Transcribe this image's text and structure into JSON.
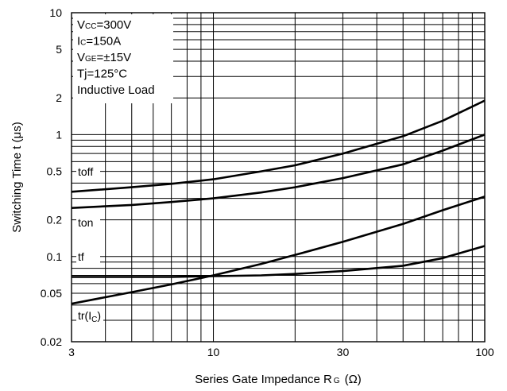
{
  "chart_data": {
    "type": "line",
    "xlabel": "Series Gate Impedance R",
    "xlabel_subscript": "G",
    "xlabel_unit": "(Ω)",
    "ylabel": "Switching Time t (μs)",
    "xscale": "log",
    "yscale": "log",
    "xlim": [
      3,
      100
    ],
    "ylim": [
      0.02,
      10
    ],
    "grid": true,
    "x_ticks": [
      {
        "value": 3,
        "label": "3"
      },
      {
        "value": 10,
        "label": "10"
      },
      {
        "value": 30,
        "label": "30"
      },
      {
        "value": 100,
        "label": "100"
      }
    ],
    "y_ticks": [
      {
        "value": 0.02,
        "label": "0.02"
      },
      {
        "value": 0.05,
        "label": "0.05"
      },
      {
        "value": 0.1,
        "label": "0.1"
      },
      {
        "value": 0.2,
        "label": "0.2"
      },
      {
        "value": 0.5,
        "label": "0.5"
      },
      {
        "value": 1,
        "label": "1"
      },
      {
        "value": 2,
        "label": "2"
      },
      {
        "value": 5,
        "label": "5"
      },
      {
        "value": 10,
        "label": "10"
      }
    ],
    "conditions": [
      {
        "main": "V",
        "sub": "CC",
        "rest": "=300V"
      },
      {
        "main": "I",
        "sub": "C",
        "rest": "=150A"
      },
      {
        "main": "V",
        "sub": "GE",
        "rest": "=±15V"
      },
      {
        "main": "Tj=125°C",
        "sub": "",
        "rest": ""
      },
      {
        "main": "Inductive Load",
        "sub": "",
        "rest": ""
      }
    ],
    "series": [
      {
        "name": "toff",
        "label_main": "toff",
        "label_sub": "",
        "label_tail": "",
        "x": [
          3,
          5,
          7,
          10,
          15,
          20,
          30,
          50,
          70,
          100
        ],
        "y": [
          0.34,
          0.37,
          0.395,
          0.43,
          0.5,
          0.56,
          0.7,
          0.97,
          1.3,
          1.9
        ]
      },
      {
        "name": "ton",
        "label_main": "ton",
        "label_sub": "",
        "label_tail": "",
        "x": [
          3,
          5,
          7,
          10,
          15,
          20,
          30,
          50,
          70,
          100
        ],
        "y": [
          0.25,
          0.265,
          0.28,
          0.3,
          0.335,
          0.37,
          0.44,
          0.57,
          0.74,
          1.0
        ]
      },
      {
        "name": "tf",
        "label_main": "tf",
        "label_sub": "",
        "label_tail": "",
        "x": [
          3,
          5,
          7,
          10,
          15,
          20,
          30,
          50,
          70,
          100
        ],
        "y": [
          0.068,
          0.068,
          0.068,
          0.069,
          0.07,
          0.072,
          0.076,
          0.084,
          0.097,
          0.122
        ]
      },
      {
        "name": "tr(Ic)",
        "label_main": "tr(I",
        "label_sub": "C",
        "label_tail": ")",
        "x": [
          3,
          5,
          7,
          10,
          15,
          20,
          30,
          50,
          70,
          100
        ],
        "y": [
          0.041,
          0.051,
          0.059,
          0.07,
          0.087,
          0.103,
          0.132,
          0.185,
          0.24,
          0.31
        ]
      }
    ]
  }
}
